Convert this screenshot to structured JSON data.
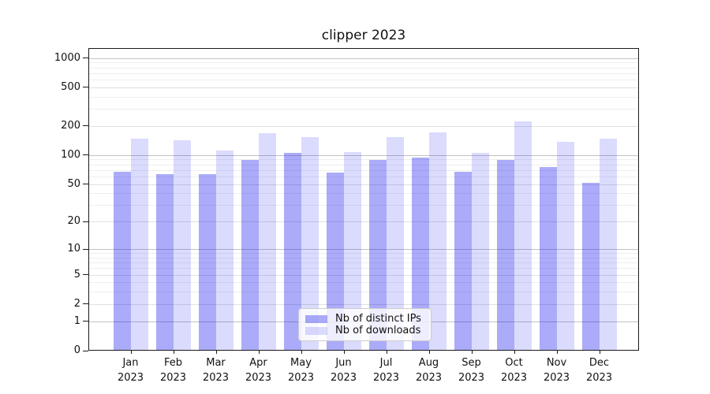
{
  "chart_data": {
    "type": "bar",
    "title": "clipper 2023",
    "categories": [
      "Jan 2023",
      "Feb 2023",
      "Mar 2023",
      "Apr 2023",
      "May 2023",
      "Jun 2023",
      "Jul 2023",
      "Aug 2023",
      "Sep 2023",
      "Oct 2023",
      "Nov 2023",
      "Dec 2023"
    ],
    "series": [
      {
        "name": "Nb of distinct IPs",
        "color_hex": "#aaaaf9",
        "fill_rgba": "rgba(0,0,238,0.33)",
        "values": [
          67,
          63,
          63,
          90,
          105,
          66,
          90,
          94,
          67,
          89,
          75,
          52
        ]
      },
      {
        "name": "Nb of downloads",
        "color_hex": "#dbdbfc",
        "fill_rgba": "rgba(0,0,238,0.14)",
        "values": [
          147,
          143,
          112,
          169,
          154,
          107,
          154,
          172,
          106,
          223,
          137,
          148
        ]
      }
    ],
    "yscale": "log10(value+1)",
    "yticks": [
      0,
      1,
      2,
      5,
      10,
      20,
      50,
      100,
      200,
      500,
      1000
    ],
    "ylim": [
      0,
      1263
    ],
    "xlabel": "",
    "ylabel": "",
    "grid": "both",
    "legend_position": "lower center",
    "background": "#ffffff",
    "grid_major_color": "#c3c3c3",
    "grid_minor_color": "#eeeeee"
  }
}
